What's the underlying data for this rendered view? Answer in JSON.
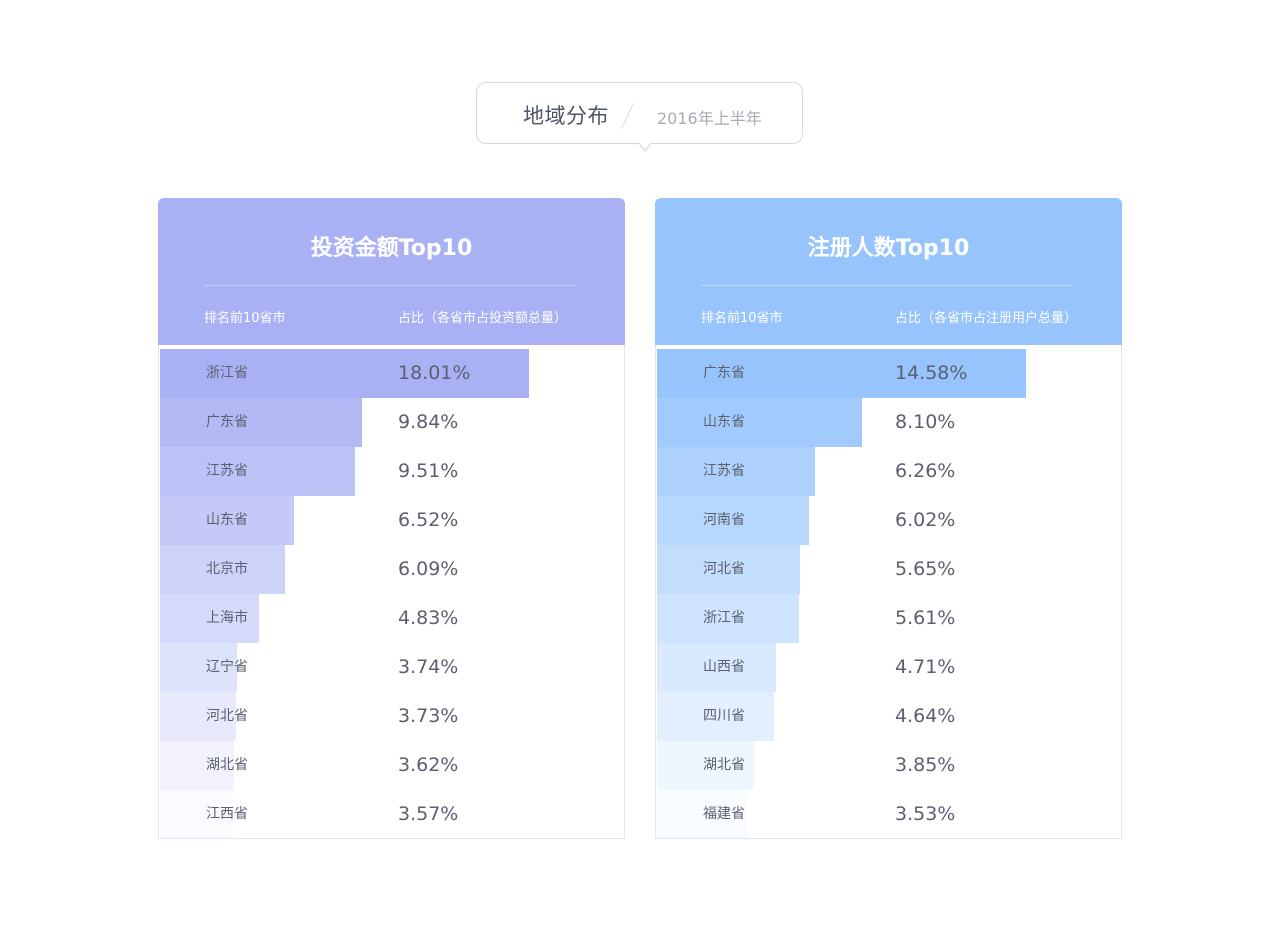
{
  "header": {
    "title": "地域分布",
    "subtitle": "2016年上半年"
  },
  "chart_data": [
    {
      "type": "bar",
      "title": "投资金额Top10",
      "column_headers": [
        "排名前10省市",
        "占比（各省市占投资额总量）"
      ],
      "categories": [
        "浙江省",
        "广东省",
        "江苏省",
        "山东省",
        "北京市",
        "上海市",
        "辽宁省",
        "河北省",
        "湖北省",
        "江西省"
      ],
      "values": [
        18.01,
        9.84,
        9.51,
        6.52,
        6.09,
        4.83,
        3.74,
        3.73,
        3.62,
        3.57
      ],
      "value_labels": [
        "18.01%",
        "9.84%",
        "9.51%",
        "6.52%",
        "6.09%",
        "4.83%",
        "3.74%",
        "3.73%",
        "3.62%",
        "3.57%"
      ],
      "orientation": "horizontal",
      "accent_color": "#a9b1f4"
    },
    {
      "type": "bar",
      "title": "注册人数Top10",
      "column_headers": [
        "排名前10省市",
        "占比（各省市占注册用户总量）"
      ],
      "categories": [
        "广东省",
        "山东省",
        "江苏省",
        "河南省",
        "河北省",
        "浙江省",
        "山西省",
        "四川省",
        "湖北省",
        "福建省"
      ],
      "values": [
        14.58,
        8.1,
        6.26,
        6.02,
        5.65,
        5.61,
        4.71,
        4.64,
        3.85,
        3.53
      ],
      "value_labels": [
        "14.58%",
        "8.10%",
        "6.26%",
        "6.02%",
        "5.65%",
        "5.61%",
        "4.71%",
        "4.64%",
        "3.85%",
        "3.53%"
      ],
      "orientation": "horizontal",
      "accent_color": "#97c4fc"
    }
  ]
}
